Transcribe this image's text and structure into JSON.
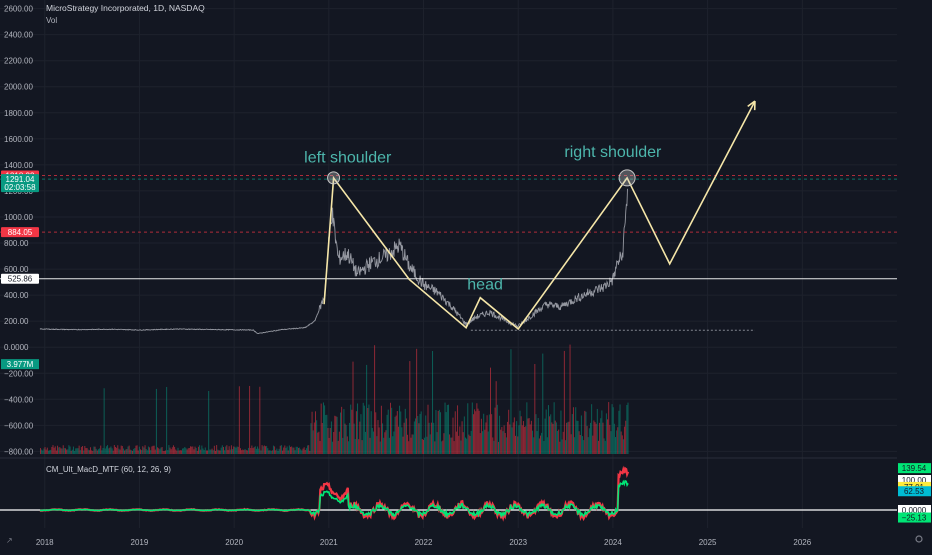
{
  "header": {
    "title": "MicroStrategy Incorporated, 1D, NASDAQ",
    "volume_label": "Vol"
  },
  "indicator": {
    "label": "CM_Ult_MacD_MTF (60, 12, 26, 9)"
  },
  "chart_data": {
    "type": "line",
    "symbol": "MSTR",
    "price_axis": {
      "ticks": [
        -800,
        -600,
        -400,
        -200,
        0,
        200,
        400,
        600,
        800,
        1000,
        1200,
        1400,
        1600,
        1800,
        2000,
        2200,
        2400,
        2600
      ],
      "tick_labels": [
        "−800.00",
        "−600.00",
        "−400.00",
        "−200.00",
        "0.0000",
        "200.00",
        "400.00",
        "600.00",
        "800.00",
        "1000.00",
        "1200.00",
        "1400.00",
        "1600.00",
        "1800.00",
        "2000.00",
        "2200.00",
        "2400.00",
        "2600.00"
      ],
      "ylim": [
        -820,
        2620
      ]
    },
    "time_axis": {
      "years": [
        2018,
        2019,
        2020,
        2021,
        2022,
        2023,
        2024,
        2025,
        2026
      ],
      "xlim": [
        2017.95,
        2027.0
      ]
    },
    "price_series": {
      "name": "MSTR close",
      "x": [
        2017.95,
        2018.3,
        2018.7,
        2019.0,
        2019.4,
        2019.8,
        2020.2,
        2020.25,
        2020.5,
        2020.75,
        2020.85,
        2020.95,
        2021.03,
        2021.1,
        2021.2,
        2021.3,
        2021.45,
        2021.6,
        2021.75,
        2021.85,
        2022.0,
        2022.15,
        2022.3,
        2022.45,
        2022.55,
        2022.7,
        2022.85,
        2023.0,
        2023.15,
        2023.3,
        2023.45,
        2023.6,
        2023.75,
        2023.9,
        2024.0,
        2024.05,
        2024.1,
        2024.14,
        2024.16
      ],
      "y": [
        140,
        135,
        138,
        132,
        140,
        135,
        132,
        105,
        135,
        150,
        200,
        380,
        1050,
        680,
        720,
        560,
        650,
        700,
        780,
        620,
        480,
        420,
        310,
        175,
        230,
        270,
        210,
        160,
        250,
        330,
        310,
        370,
        420,
        460,
        520,
        650,
        700,
        1050,
        1291
      ]
    },
    "volume_series": {
      "name": "Vol",
      "current_label": "3.977M"
    },
    "horizontal_levels": [
      {
        "value": 1318.32,
        "label": "1318.32",
        "color": "#f23645",
        "style": "dashed"
      },
      {
        "value": 1291.04,
        "label": "1291.04",
        "sublabel": "02:03:58",
        "color": "#089981",
        "style": "dashed"
      },
      {
        "value": 884.05,
        "label": "884.05",
        "color": "#f23645",
        "style": "dashed"
      },
      {
        "value": 525.86,
        "label": "525.86",
        "color": "#ffffff",
        "style": "solid"
      },
      {
        "value": 130,
        "color": "#b2b5be",
        "style": "dotted"
      }
    ],
    "pattern_path": {
      "x": [
        2020.95,
        2021.05,
        2021.85,
        2022.45,
        2022.6,
        2023.0,
        2024.15,
        2024.6,
        2025.5
      ],
      "y": [
        330,
        1300,
        520,
        150,
        380,
        140,
        1300,
        640,
        1890
      ],
      "color": "#f5e6a8"
    },
    "annotations": [
      {
        "text": "left shoulder",
        "x": 2021.2,
        "y": 1420,
        "color": "#4db6ac"
      },
      {
        "text": "head",
        "x": 2022.65,
        "y": 445,
        "color": "#4db6ac"
      },
      {
        "text": "right shoulder",
        "x": 2024.0,
        "y": 1460,
        "color": "#4db6ac"
      }
    ],
    "macd": {
      "name": "CM_Ult_MacD_MTF",
      "params": [
        60,
        12,
        26,
        9
      ],
      "level_labels": [
        {
          "text": "139.54",
          "color": "#00e676"
        },
        {
          "text": "100.00",
          "color": "#ffffff"
        },
        {
          "text": "77.01",
          "color": "#ffeb3b"
        },
        {
          "text": "62.53",
          "color": "#00bcd4"
        },
        {
          "text": "0.0000",
          "color": "#ffffff"
        },
        {
          "text": "−25.13",
          "color": "#00e676"
        }
      ],
      "ylim": [
        -60,
        160
      ]
    },
    "colors": {
      "background": "#131722",
      "up": "#089981",
      "down": "#f23645",
      "pattern": "#f5e6a8",
      "annotation": "#4db6ac"
    }
  }
}
